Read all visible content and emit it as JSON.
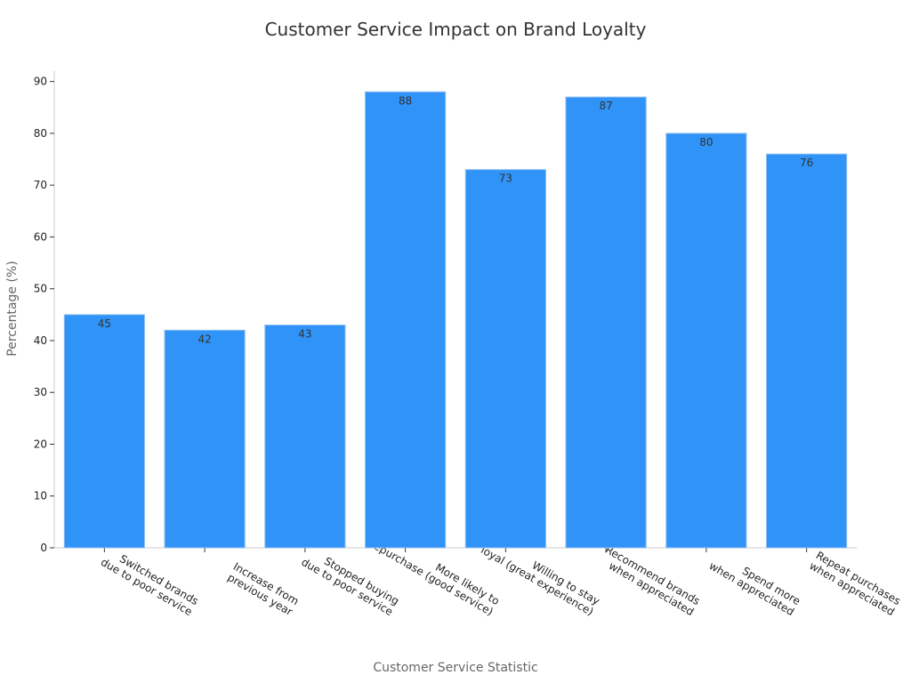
{
  "chart_data": {
    "type": "bar",
    "title": "Customer Service Impact on Brand Loyalty",
    "xlabel": "Customer Service Statistic",
    "ylabel": "Percentage (%)",
    "ylim": [
      0,
      92
    ],
    "yticks": [
      0,
      10,
      20,
      30,
      40,
      50,
      60,
      70,
      80,
      90
    ],
    "grid": false,
    "bar_color": "#3093f8",
    "categories": [
      [
        "Switched brands",
        "due to poor service"
      ],
      [
        "Increase from",
        "previous year"
      ],
      [
        "Stopped buying",
        "due to poor service"
      ],
      [
        "More likely to",
        "repurchase (good service)"
      ],
      [
        "Willing to stay",
        "loyal (great experience)"
      ],
      [
        "Recommend brands",
        "when appreciated"
      ],
      [
        "Spend more",
        "when appreciated"
      ],
      [
        "Repeat purchases",
        "when appreciated"
      ]
    ],
    "values": [
      45,
      42,
      43,
      88,
      73,
      87,
      80,
      76
    ]
  }
}
